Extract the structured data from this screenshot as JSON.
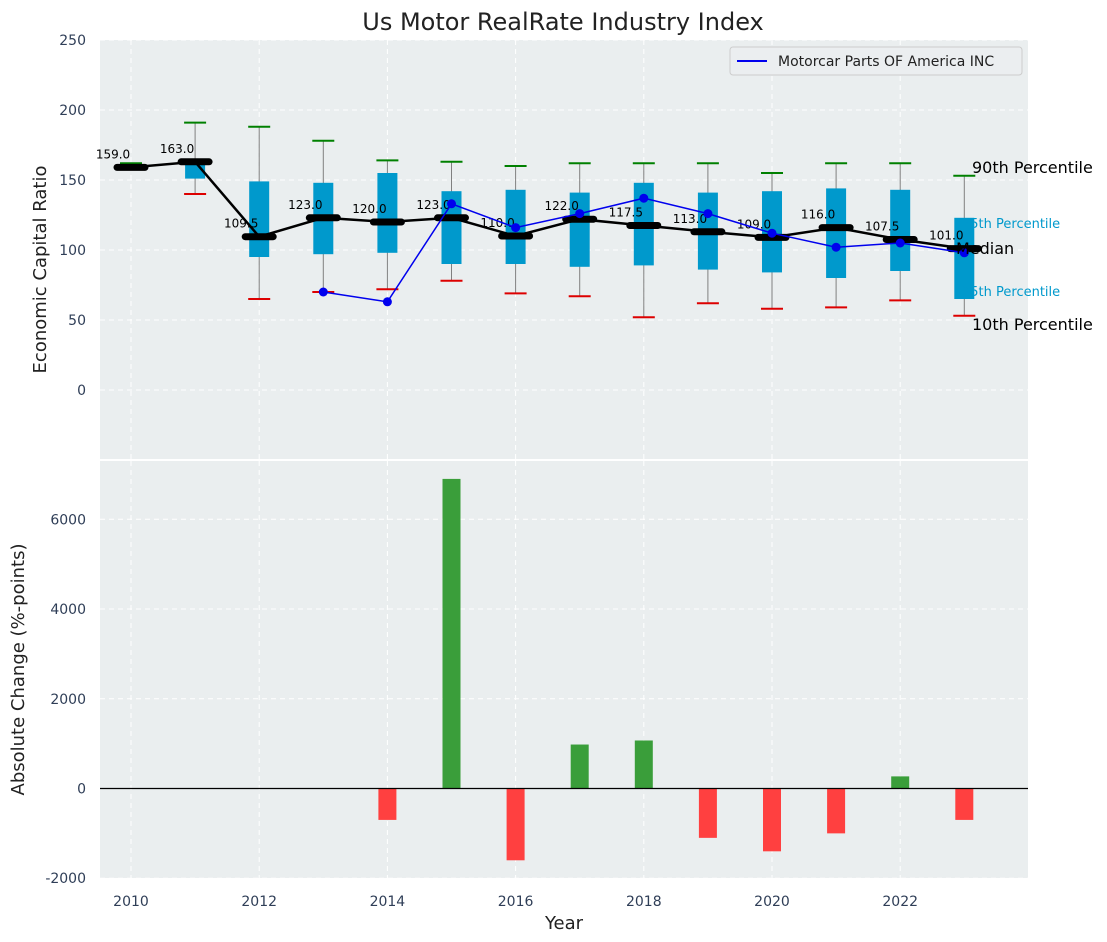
{
  "chart_data": [
    {
      "type": "box",
      "title": "Us Motor RealRate Industry Index",
      "xlabel": "",
      "ylabel": "Economic Capital Ratio",
      "ylim": [
        -50,
        250
      ],
      "yticks": [
        0,
        50,
        100,
        150,
        200,
        250
      ],
      "xlim": [
        2009.5,
        2023.9
      ],
      "grid": true,
      "legend": {
        "placement": "top-right",
        "entries": [
          "Motorcar Parts OF America INC"
        ]
      },
      "colors": {
        "box": "#0099cc",
        "median": "#000000",
        "company": "#0000ee",
        "p90_cap": "#008000",
        "p10_cap": "#dd0000",
        "whisker": "#808080",
        "panel_bg": "#eaeeef"
      },
      "years": [
        2010,
        2011,
        2012,
        2013,
        2014,
        2015,
        2016,
        2017,
        2018,
        2019,
        2020,
        2021,
        2022,
        2023
      ],
      "median": [
        159.0,
        163.0,
        109.5,
        123.0,
        120.0,
        123.0,
        110.0,
        122.0,
        117.5,
        113.0,
        109.0,
        116.0,
        107.5,
        101.0
      ],
      "median_labels": [
        "159.0",
        "163.0",
        "109.5",
        "123.0",
        "120.0",
        "123.0",
        "110.0",
        "122.0",
        "117.5",
        "113.0",
        "109.0",
        "116.0",
        "107.5",
        "101.0"
      ],
      "q1": [
        159,
        151,
        95,
        97,
        98,
        90,
        90,
        88,
        89,
        86,
        84,
        80,
        85,
        65
      ],
      "q3": [
        160,
        163,
        149,
        148,
        155,
        142,
        143,
        141,
        148,
        141,
        142,
        144,
        143,
        123
      ],
      "p90": [
        162,
        191,
        188,
        178,
        164,
        163,
        160,
        162,
        162,
        162,
        155,
        162,
        162,
        153
      ],
      "p10": [
        null,
        140,
        65,
        70,
        72,
        78,
        69,
        67,
        52,
        62,
        58,
        59,
        64,
        53
      ],
      "company": {
        "name": "Motorcar Parts OF America INC",
        "values": [
          null,
          null,
          null,
          70,
          63,
          133,
          116,
          126,
          137,
          126,
          112,
          102,
          105,
          98
        ]
      },
      "annotations": {
        "p90": "90th Percentile",
        "p75": "75th Percentile",
        "median": "Median",
        "p25": "25th Percentile",
        "p10": "10th Percentile"
      }
    },
    {
      "type": "bar",
      "xlabel": "Year",
      "ylabel": "Absolute Change (%-points)",
      "ylim": [
        -2000,
        7500
      ],
      "yticks": [
        -2000,
        0,
        2000,
        4000,
        6000
      ],
      "xticks": [
        2010,
        2012,
        2014,
        2016,
        2018,
        2020,
        2022
      ],
      "x": [
        2014,
        2015,
        2016,
        2017,
        2018,
        2019,
        2020,
        2021,
        2022,
        2023
      ],
      "values": [
        -700,
        6900,
        -1600,
        980,
        1070,
        -1100,
        -1400,
        -1000,
        270,
        -700
      ],
      "colors": {
        "positive": "#3a9e3a",
        "negative": "#ff4040",
        "zero_line": "#000000"
      }
    }
  ]
}
